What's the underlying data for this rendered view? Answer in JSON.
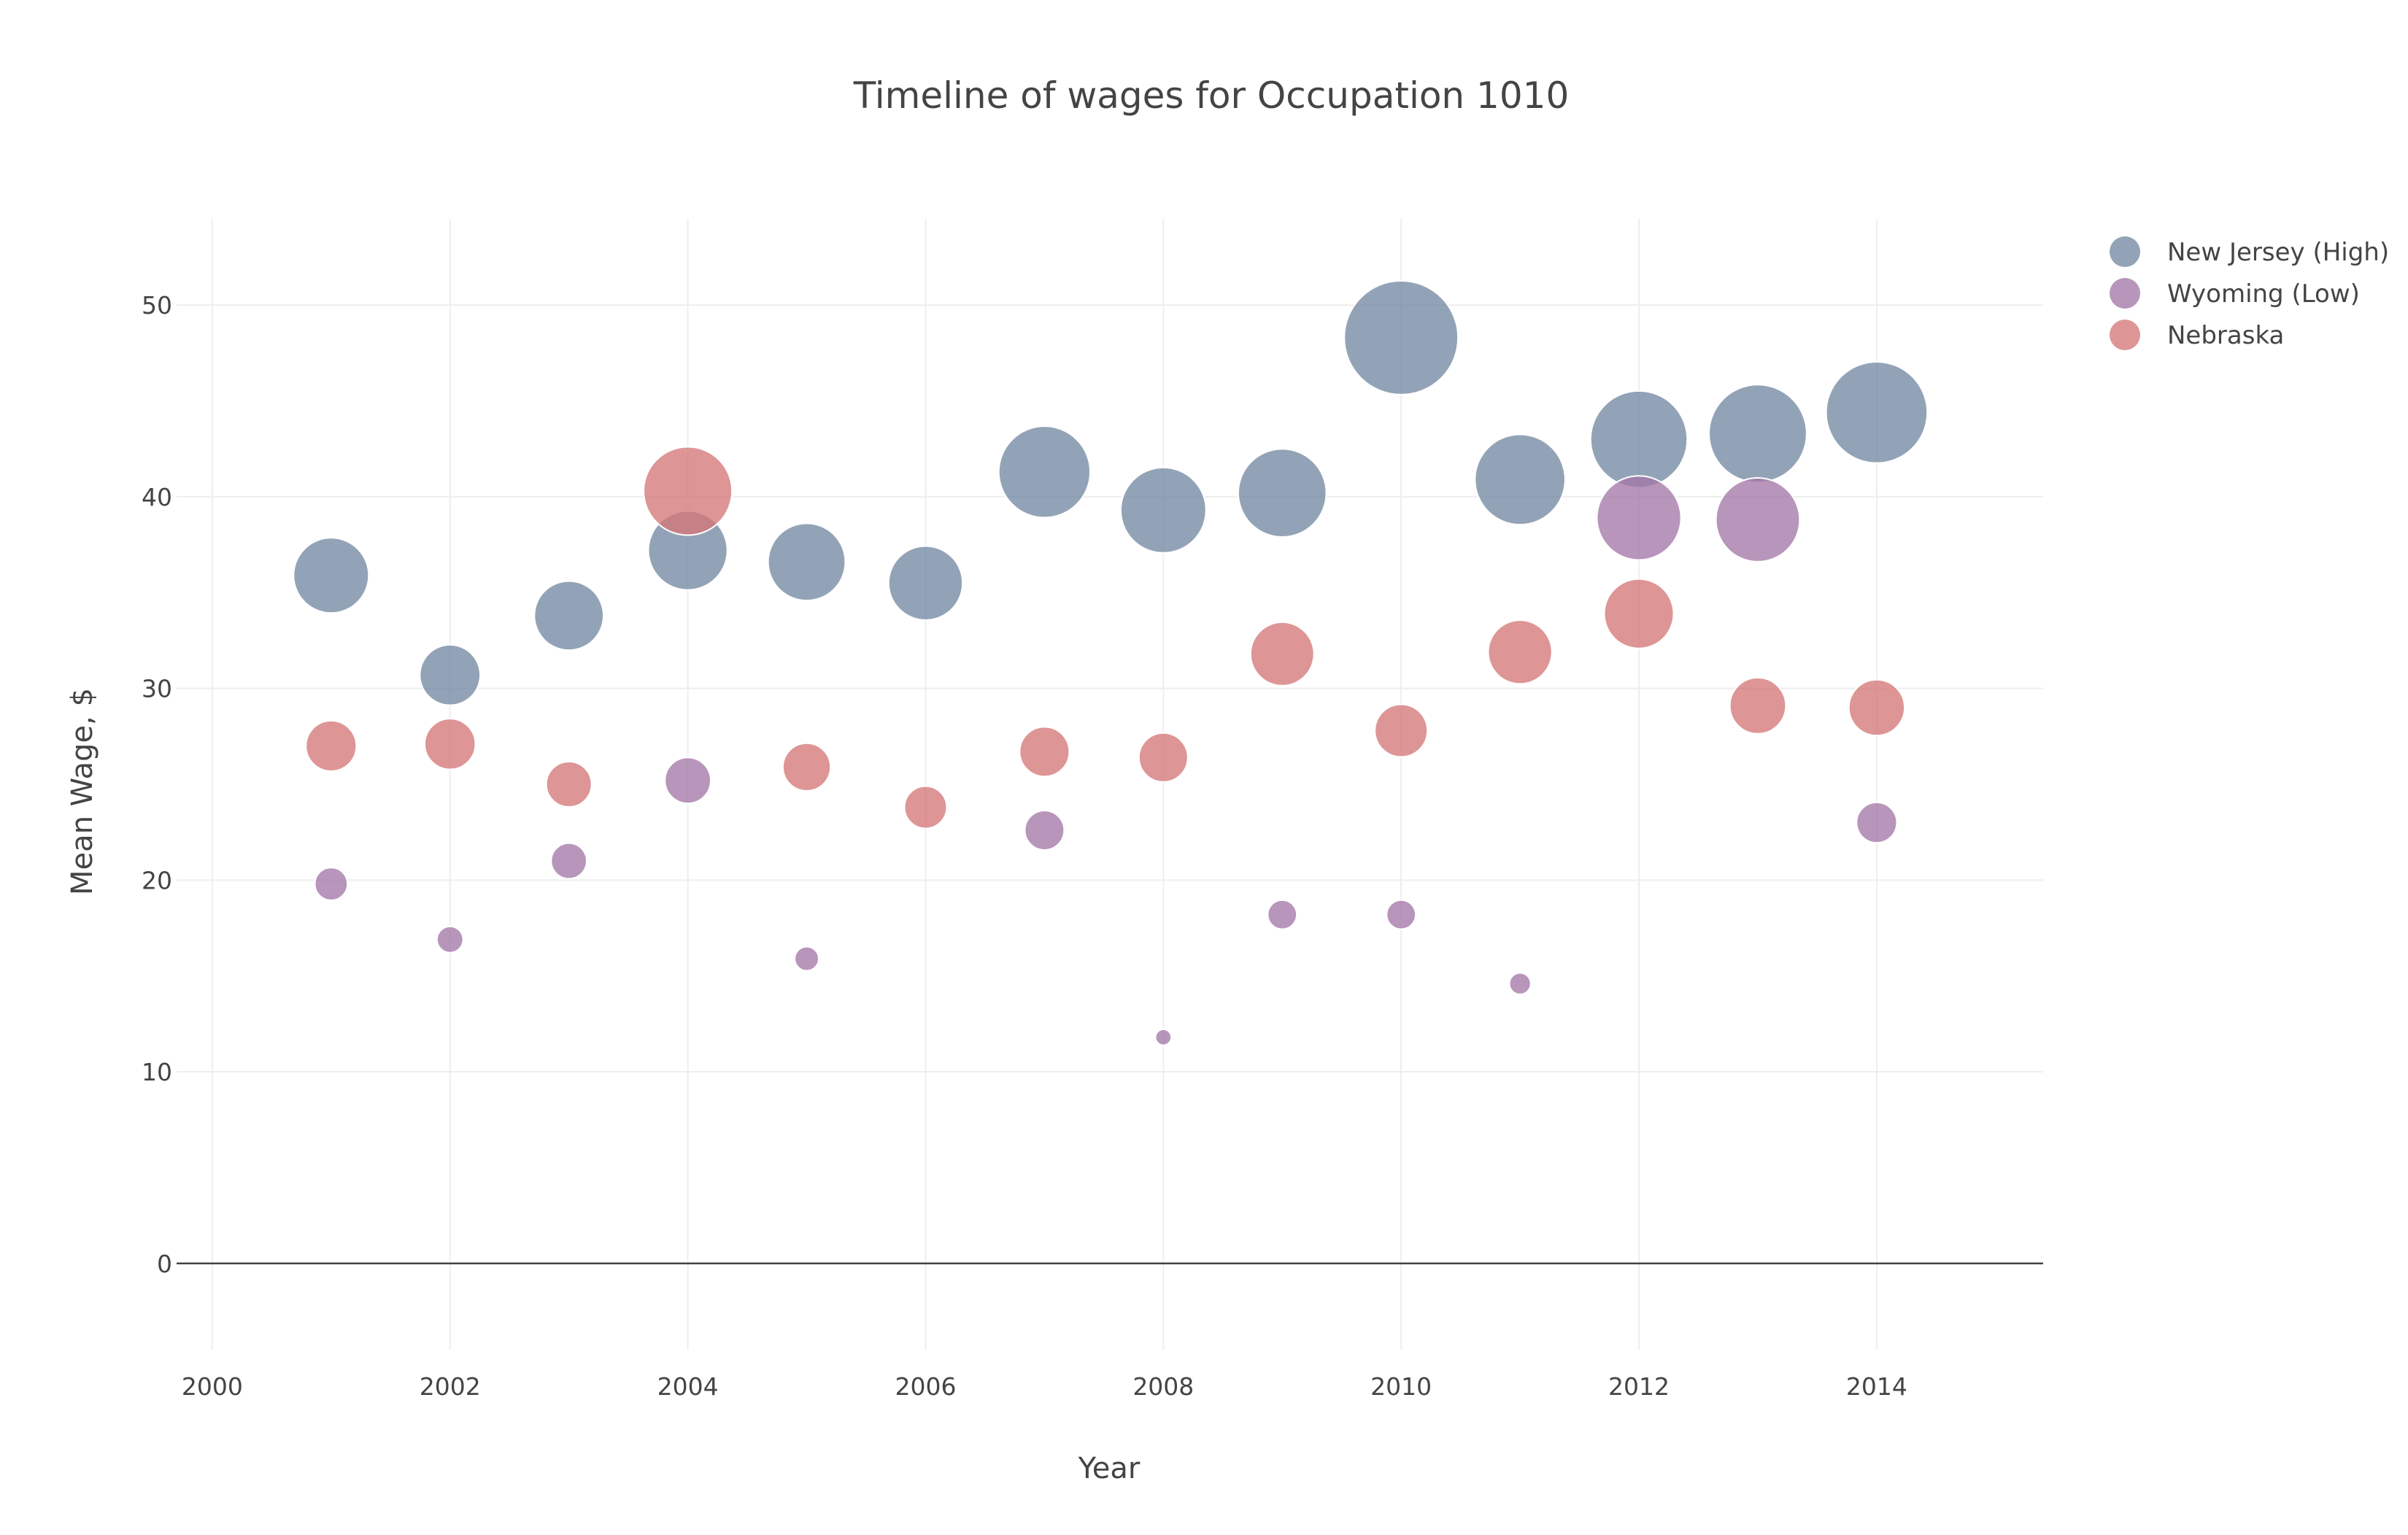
{
  "chart_data": {
    "type": "scatter",
    "title": "Timeline of wages for Occupation 1010",
    "xlabel": "Year",
    "ylabel": "Mean Wage, $",
    "xlim": [
      1999.7,
      2015.4
    ],
    "ylim": [
      -4.5,
      54.5
    ],
    "x_ticks": [
      2000,
      2002,
      2004,
      2006,
      2008,
      2010,
      2012,
      2014
    ],
    "y_ticks": [
      0,
      10,
      20,
      30,
      40,
      50
    ],
    "grid": true,
    "legend_position": "top-right",
    "series": [
      {
        "name": "New Jersey (High)",
        "color": "#7489a3",
        "x": [
          2001,
          2002,
          2003,
          2004,
          2005,
          2006,
          2007,
          2008,
          2009,
          2010,
          2011,
          2012,
          2013,
          2014
        ],
        "y": [
          35.9,
          30.7,
          33.8,
          37.2,
          36.6,
          35.5,
          41.3,
          39.3,
          40.2,
          48.3,
          40.9,
          43.0,
          43.3,
          44.4
        ],
        "size": [
          35.9,
          30.7,
          33.8,
          37.2,
          36.6,
          35.5,
          41.3,
          39.3,
          40.2,
          48.3,
          40.9,
          43.0,
          43.3,
          44.4
        ]
      },
      {
        "name": "Wyoming (Low)",
        "color": "#a477a8",
        "x": [
          2001,
          2002,
          2003,
          2004,
          2005,
          2007,
          2008,
          2009,
          2010,
          2011,
          2012,
          2013,
          2014
        ],
        "y": [
          19.8,
          16.9,
          21.0,
          25.2,
          15.9,
          22.6,
          11.8,
          18.2,
          18.2,
          14.6,
          38.9,
          38.8,
          23.0
        ],
        "size": [
          19.8,
          16.9,
          21.0,
          25.2,
          15.9,
          22.6,
          11.8,
          18.2,
          18.2,
          14.6,
          38.9,
          38.8,
          23.0
        ]
      },
      {
        "name": "Nebraska",
        "color": "#d57778",
        "x": [
          2001,
          2002,
          2003,
          2004,
          2005,
          2006,
          2007,
          2008,
          2009,
          2010,
          2011,
          2012,
          2013,
          2014
        ],
        "y": [
          27.0,
          27.1,
          25.0,
          40.3,
          25.9,
          23.8,
          26.7,
          26.4,
          31.8,
          27.8,
          31.9,
          33.9,
          29.1,
          29.0
        ],
        "size": [
          27.0,
          27.1,
          25.0,
          40.3,
          25.9,
          23.8,
          26.7,
          26.4,
          31.8,
          27.8,
          31.9,
          33.9,
          29.1,
          29.0
        ]
      }
    ]
  }
}
